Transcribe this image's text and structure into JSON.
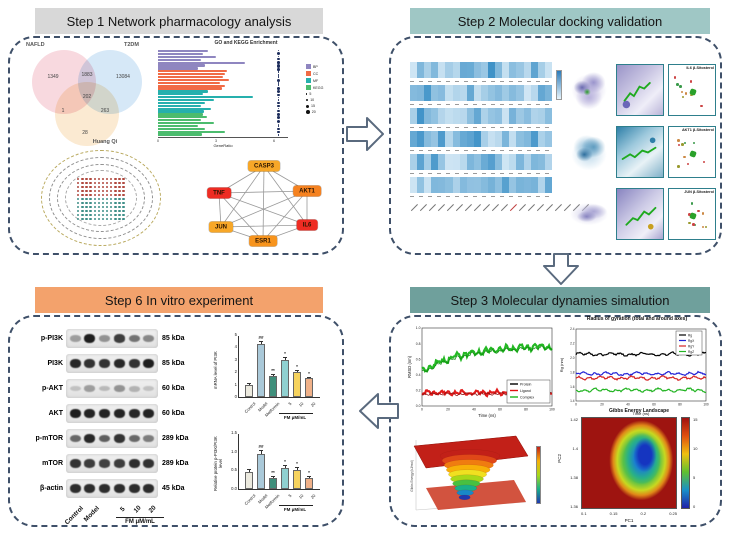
{
  "panels": {
    "step1": {
      "title": "Step 1 Network pharmacology analysis",
      "title_bg": "#d8d8d8"
    },
    "step2": {
      "title": "Step 2 Molecular docking validation",
      "title_bg": "#9fc7c5"
    },
    "step3": {
      "title": "Step 3 Molecular dynamies simalution",
      "title_bg": "#6fa09c"
    },
    "step6": {
      "title": "Step 6 In vitro experiment",
      "title_bg": "#f3a26c"
    }
  },
  "ppi_network": {
    "nodes": [
      {
        "label": "CASP3",
        "color": "#f7a728"
      },
      {
        "label": "TNF",
        "color": "#ee2c23"
      },
      {
        "label": "AKT1",
        "color": "#f58220"
      },
      {
        "label": "JUN",
        "color": "#f7a728"
      },
      {
        "label": "IL6",
        "color": "#ee2c23"
      },
      {
        "label": "ESR1",
        "color": "#f7941d"
      }
    ]
  },
  "herb_network": {
    "label": "Huang Qi",
    "node_colors": [
      "#b0493f",
      "#3f8f88"
    ]
  },
  "docking": {
    "box_color": "#2e7f8c",
    "rows": [
      {
        "label": "IL6 β-Sitosterol"
      },
      {
        "label": "AKT1 β-Sitosterol"
      },
      {
        "label": "JUN β-Sitosterol"
      }
    ]
  },
  "western_blot": {
    "rows": [
      {
        "target": "p-PI3K",
        "kda": "85 kDa",
        "intensities": [
          0.35,
          0.95,
          0.4,
          0.8,
          0.55,
          0.45
        ]
      },
      {
        "target": "PI3K",
        "kda": "85 kDa",
        "intensities": [
          0.9,
          0.85,
          0.85,
          0.9,
          0.85,
          0.95
        ]
      },
      {
        "target": "p-AKT",
        "kda": "60 kDa",
        "intensities": [
          0.18,
          0.35,
          0.22,
          0.4,
          0.25,
          0.18
        ]
      },
      {
        "target": "AKT",
        "kda": "60 kDa",
        "intensities": [
          0.95,
          0.92,
          0.92,
          0.92,
          0.9,
          0.92
        ]
      },
      {
        "target": "p-mTOR",
        "kda": "289 kDa",
        "intensities": [
          0.6,
          0.9,
          0.65,
          0.85,
          0.6,
          0.5
        ]
      },
      {
        "target": "mTOR",
        "kda": "289 kDa",
        "intensities": [
          0.85,
          0.8,
          0.78,
          0.8,
          0.88,
          0.85
        ]
      },
      {
        "target": "β-actin",
        "kda": "45 kDa",
        "intensities": [
          0.88,
          0.88,
          0.88,
          0.88,
          0.88,
          0.88
        ]
      }
    ],
    "lane_labels": [
      "Control",
      "Model"
    ],
    "doses": [
      "5",
      "10",
      "20"
    ],
    "dose_unit": "FM μM/mL"
  },
  "chart_data": [
    {
      "id": "venn",
      "type": "venn",
      "sets": [
        "NAFLD",
        "T2DM",
        "Huang Qi"
      ],
      "colors": [
        "#f6ccd4",
        "#c9e0f4",
        "#fae3c3"
      ],
      "regions": {
        "nafld_only": "1349",
        "nafld_t2dm": "1883",
        "t2dm_only": "13084",
        "all_three": "202",
        "nafld_hq": "1",
        "t2dm_hq": "263",
        "hq_only": "28"
      }
    },
    {
      "id": "go_kegg",
      "type": "bar",
      "title": "GO and KEGG Enrichment",
      "xlabel": "GeneRatio",
      "legend": [
        "BP",
        "CC",
        "MF",
        "KEGG"
      ],
      "xticks": [
        "0",
        "3",
        "6"
      ],
      "groups": [
        {
          "name": "BP",
          "color": "#8f86c0",
          "widths": [
            0.45,
            0.4,
            0.52,
            0.38,
            0.78,
            0.42,
            0.36
          ]
        },
        {
          "name": "CC",
          "color": "#f16b45",
          "widths": [
            0.62,
            0.6,
            0.58,
            0.63,
            0.55,
            0.6,
            0.57
          ]
        },
        {
          "name": "MF",
          "color": "#26b0ad",
          "widths": [
            0.45,
            0.4,
            0.85,
            0.5,
            0.42,
            0.38,
            0.47,
            0.41
          ]
        },
        {
          "name": "KEGG",
          "color": "#4cbc6e",
          "widths": [
            0.4,
            0.44,
            0.38,
            0.5,
            0.36,
            0.42,
            0.6,
            0.39
          ]
        }
      ]
    },
    {
      "id": "dock_heatmap",
      "type": "heatmap",
      "rows": 6,
      "cols": 20,
      "palette": [
        "#e3f1fa",
        "#3a8fc6"
      ]
    },
    {
      "id": "rmsd",
      "type": "line",
      "xlabel": "Time (ns)",
      "ylabel": "RMSD (nm)",
      "xlim": [
        0,
        100
      ],
      "ylim": [
        0,
        1
      ],
      "series": [
        {
          "name": "Protein",
          "color": "#000000",
          "level": 0.2
        },
        {
          "name": "Ligand",
          "color": "#e01010",
          "level": 0.17
        },
        {
          "name": "Complex",
          "color": "#18b418",
          "from": 0.44,
          "to": 0.78
        }
      ]
    },
    {
      "id": "rg",
      "type": "line",
      "title": "Radius of gyration (total and around axes)",
      "xlabel": "Time (ns)",
      "ylabel": "Rg (nm)",
      "xlim": [
        0,
        100
      ],
      "ylim": [
        1.4,
        2.4
      ],
      "series": [
        {
          "name": "Rg",
          "color": "#000000",
          "level": 2.05
        },
        {
          "name": "RgX",
          "color": "#2323d6",
          "level": 1.78
        },
        {
          "name": "RgY",
          "color": "#d62323",
          "level": 1.72
        },
        {
          "name": "RgZ",
          "color": "#23b423",
          "level": 1.55
        }
      ]
    },
    {
      "id": "gibbs3d",
      "type": "surface",
      "zlabel": "Gibbs Energy (kJ/mol)",
      "palette": "jet"
    },
    {
      "id": "gibbs2d",
      "type": "heatmap",
      "title": "Gibbs Energy Landscape",
      "xlabel": "PC1",
      "ylabel": "PC2",
      "xticks": [
        "0.1",
        "0.15",
        "0.2",
        "0.25"
      ],
      "yticks": [
        "1.42",
        "1.4",
        "1.38",
        "1.36"
      ],
      "colorbar_ticks": [
        "15",
        "10",
        "5",
        "0"
      ]
    },
    {
      "id": "mrna_pi3k",
      "type": "bar",
      "ylabel": "mRNA level of PI3K",
      "categories": [
        "Control",
        "Model",
        "Metformin",
        "5",
        "10",
        "20"
      ],
      "values": [
        1.0,
        4.3,
        1.7,
        3.0,
        2.0,
        1.5
      ],
      "errors": [
        0.15,
        0.25,
        0.15,
        0.25,
        0.2,
        0.15
      ],
      "colors": [
        "#eceadf",
        "#aac9d9",
        "#3f8f7b",
        "#8fd0d0",
        "#f6d35e",
        "#f0b189"
      ],
      "ylim": [
        0,
        5
      ],
      "yticks": [
        "0",
        "1",
        "2",
        "3",
        "4",
        "5"
      ],
      "annotations": [
        "",
        "##",
        "**",
        "*",
        "*",
        "*"
      ],
      "group_label": "FM μM/mL"
    },
    {
      "id": "p_pi3k_protein",
      "type": "bar",
      "ylabel": "Relative protein p-PI3K/PI3K level",
      "categories": [
        "Control",
        "Model",
        "Metformin",
        "5",
        "10",
        "20"
      ],
      "values": [
        0.45,
        0.95,
        0.3,
        0.55,
        0.5,
        0.3
      ],
      "errors": [
        0.08,
        0.1,
        0.06,
        0.08,
        0.08,
        0.06
      ],
      "colors": [
        "#eceadf",
        "#aac9d9",
        "#3f8f7b",
        "#8fd0d0",
        "#f6d35e",
        "#f0b189"
      ],
      "ylim": [
        0,
        1.5
      ],
      "yticks": [
        "0.0",
        "0.5",
        "1.0",
        "1.5"
      ],
      "annotations": [
        "",
        "##",
        "**",
        "*",
        "*",
        "*"
      ],
      "group_label": "FM μM/mL"
    }
  ]
}
